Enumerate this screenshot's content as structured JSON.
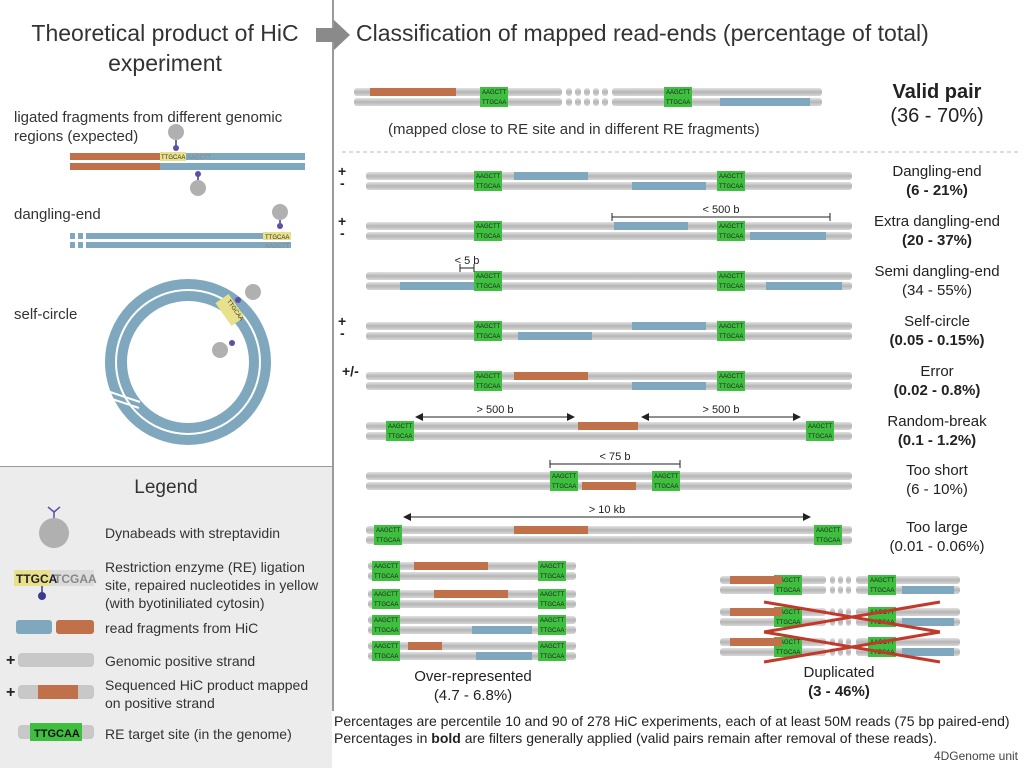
{
  "left": {
    "title": "Theoretical product of HiC experiment",
    "ligated_label": "ligated fragments from different genomic regions (expected)",
    "dangling_label": "dangling-end",
    "selfcircle_label": "self-circle",
    "site_seq_top": "TTGCAA",
    "site_seq_rest": "AAGCTT"
  },
  "header": {
    "title": "Classification of mapped read-ends (percentage of total)"
  },
  "valid_pair": {
    "name": "Valid pair",
    "pct": "(36 - 70%)",
    "note": "(mapped close to RE site and in different RE fragments)"
  },
  "site": {
    "top": "AAGCTT",
    "bottom": "TTGCAA"
  },
  "rows": [
    {
      "name": "Dangling-end",
      "pct": "(6 - 21%)",
      "bold": true,
      "sign": "+\n-"
    },
    {
      "name": "Extra dangling-end",
      "pct": "(20 - 37%)",
      "bold": true,
      "sign": "+\n-",
      "dist": "< 500 b"
    },
    {
      "name": "Semi dangling-end",
      "pct": "(34 - 55%)",
      "bold": false,
      "dist": "< 5 b"
    },
    {
      "name": "Self-circle",
      "pct": "(0.05 - 0.15%)",
      "bold": true,
      "sign": "+\n-"
    },
    {
      "name": "Error",
      "pct": "(0.02 - 0.8%)",
      "bold": true,
      "sign": "+/-"
    },
    {
      "name": "Random-break",
      "pct": "(0.1 - 1.2%)",
      "bold": true,
      "dist_left": "> 500 b",
      "dist_right": "> 500 b"
    },
    {
      "name": "Too short",
      "pct": "(6 - 10%)",
      "bold": false,
      "dist": "< 75 b"
    },
    {
      "name": "Too large",
      "pct": "(0.01 - 0.06%)",
      "bold": false,
      "dist": "> 10 kb"
    }
  ],
  "over_represented": {
    "name": "Over-represented",
    "pct": "(4.7 - 6.8%)"
  },
  "duplicated": {
    "name": "Duplicated",
    "pct": "(3 - 46%)"
  },
  "legend": {
    "title": "Legend",
    "items": [
      {
        "text": "Dynabeads with streptavidin"
      },
      {
        "text": "Restriction enzyme (RE) ligation site, repaired nucleotides in yellow (with byotiniliated cytosin)"
      },
      {
        "text": "read fragments from HiC"
      },
      {
        "text": "Genomic positive strand"
      },
      {
        "text": "Sequenced HiC product mapped on positive strand"
      },
      {
        "text": "RE target site (in the genome)"
      }
    ],
    "ligation_seq_a": "TTGCA",
    "ligation_seq_b": "TCGAA",
    "re_site_seq": "TTGCAA",
    "plus": "+"
  },
  "footnote": {
    "line1": "Percentages are percentile 10 and 90 of 278 HiC experiments, each of at least 50M reads (75 bp paired-end)",
    "line2_pre": "Percentages in ",
    "line2_bold": "bold",
    "line2_post": " are filters generally applied (valid pairs remain after removal of these reads).",
    "credit": "4DGenome unit"
  },
  "colors": {
    "gray_strand": "#b8b8b8",
    "blue_read": "#7fa8be",
    "orange_read": "#c0714a",
    "green_site": "#3fbf3f",
    "yellow_site": "#e8e08a",
    "bead": "#b0b0b0",
    "red_cross": "#c0392b"
  }
}
